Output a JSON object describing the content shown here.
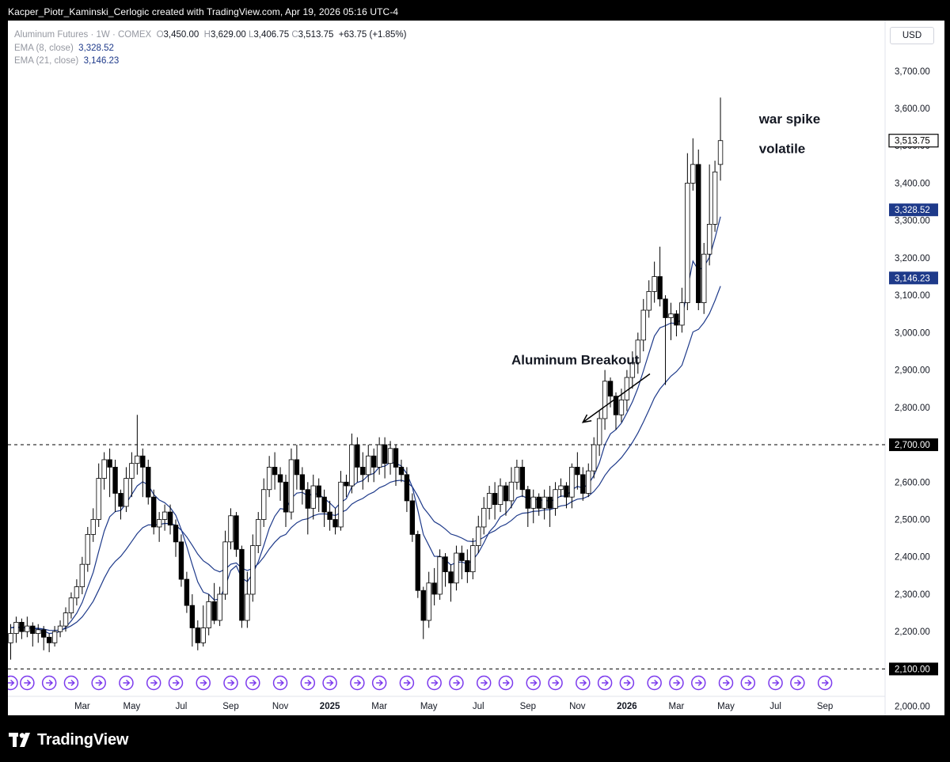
{
  "header": {
    "credit": "Kacper_Piotr_Kaminski_Cerlogic created with TradingView.com, Apr 19, 2026 05:16 UTC-4"
  },
  "legend": {
    "symbol": "Aluminum Futures · 1W · COMEX",
    "open_label": "O",
    "open": "3,450.00",
    "high_label": "H",
    "high": "3,629.00",
    "low_label": "L",
    "low": "3,406.75",
    "close_label": "C",
    "close": "3,513.75",
    "change": "+63.75 (+1.85%)",
    "ema8_label": "EMA (8, close)",
    "ema8_value": "3,328.52",
    "ema21_label": "EMA (21, close)",
    "ema21_value": "3,146.23"
  },
  "currency": "USD",
  "annotations": {
    "breakout": "Aluminum Breakout",
    "war_spike": "war spike",
    "volatile": "volatile"
  },
  "footer": {
    "brand": "TradingView"
  },
  "colors": {
    "up_body": "#ffffff",
    "down_body": "#000000",
    "candle_outline": "#000000",
    "ema8": "#1e3a8a",
    "ema21": "#1e3a8a",
    "event_icon": "#7c3aed",
    "price_tag_ema": "#1e3a8a",
    "price_tag_level": "#000000"
  },
  "chart_data": {
    "type": "candlestick",
    "title": "Aluminum Futures · 1W · COMEX",
    "currency": "USD",
    "y_ticks": [
      2000,
      2100,
      2200,
      2300,
      2400,
      2500,
      2600,
      2700,
      2800,
      2900,
      3000,
      3100,
      3200,
      3300,
      3400,
      3500,
      3600,
      3700
    ],
    "y_tick_labels": [
      "2,000.00",
      "2,100.00",
      "2,200.00",
      "2,300.00",
      "2,400.00",
      "2,500.00",
      "2,600.00",
      "2,700.00",
      "2,800.00",
      "2,900.00",
      "3,000.00",
      "3,100.00",
      "3,200.00",
      "3,300.00",
      "3,400.00",
      "3,500.00",
      "3,600.00",
      "3,700.00"
    ],
    "ylim": [
      1976,
      3835
    ],
    "x_ticks": [
      {
        "label": "Mar",
        "week": 13,
        "bold": false
      },
      {
        "label": "May",
        "week": 22,
        "bold": false
      },
      {
        "label": "Jul",
        "week": 31,
        "bold": false
      },
      {
        "label": "Sep",
        "week": 40,
        "bold": false
      },
      {
        "label": "Nov",
        "week": 49,
        "bold": false
      },
      {
        "label": "2025",
        "week": 58,
        "bold": true
      },
      {
        "label": "Mar",
        "week": 67,
        "bold": false
      },
      {
        "label": "May",
        "week": 76,
        "bold": false
      },
      {
        "label": "Jul",
        "week": 85,
        "bold": false
      },
      {
        "label": "Sep",
        "week": 94,
        "bold": false
      },
      {
        "label": "Nov",
        "week": 103,
        "bold": false
      },
      {
        "label": "2026",
        "week": 112,
        "bold": true
      },
      {
        "label": "Mar",
        "week": 121,
        "bold": false
      },
      {
        "label": "May",
        "week": 130,
        "bold": false
      },
      {
        "label": "Jul",
        "week": 139,
        "bold": false
      },
      {
        "label": "Sep",
        "week": 148,
        "bold": false
      }
    ],
    "x_range": [
      0,
      151
    ],
    "candles": [
      [
        2170,
        2195,
        2125,
        2220
      ],
      [
        2195,
        2225,
        2170,
        2240
      ],
      [
        2225,
        2200,
        2180,
        2235
      ],
      [
        2200,
        2215,
        2185,
        2240
      ],
      [
        2215,
        2195,
        2160,
        2225
      ],
      [
        2195,
        2205,
        2170,
        2220
      ],
      [
        2205,
        2185,
        2150,
        2215
      ],
      [
        2185,
        2170,
        2145,
        2195
      ],
      [
        2170,
        2200,
        2160,
        2215
      ],
      [
        2200,
        2215,
        2185,
        2230
      ],
      [
        2215,
        2250,
        2200,
        2265
      ],
      [
        2250,
        2290,
        2235,
        2305
      ],
      [
        2290,
        2320,
        2270,
        2340
      ],
      [
        2320,
        2380,
        2300,
        2400
      ],
      [
        2380,
        2460,
        2360,
        2480
      ],
      [
        2460,
        2500,
        2440,
        2530
      ],
      [
        2500,
        2610,
        2480,
        2650
      ],
      [
        2610,
        2660,
        2580,
        2680
      ],
      [
        2660,
        2640,
        2560,
        2690
      ],
      [
        2640,
        2570,
        2520,
        2660
      ],
      [
        2570,
        2535,
        2500,
        2580
      ],
      [
        2535,
        2610,
        2520,
        2640
      ],
      [
        2610,
        2650,
        2560,
        2680
      ],
      [
        2650,
        2670,
        2620,
        2780
      ],
      [
        2670,
        2640,
        2560,
        2690
      ],
      [
        2640,
        2560,
        2540,
        2660
      ],
      [
        2560,
        2480,
        2460,
        2580
      ],
      [
        2480,
        2500,
        2440,
        2520
      ],
      [
        2500,
        2520,
        2470,
        2540
      ],
      [
        2520,
        2485,
        2460,
        2540
      ],
      [
        2485,
        2440,
        2400,
        2500
      ],
      [
        2440,
        2340,
        2320,
        2460
      ],
      [
        2340,
        2270,
        2250,
        2360
      ],
      [
        2270,
        2210,
        2160,
        2300
      ],
      [
        2210,
        2170,
        2150,
        2230
      ],
      [
        2170,
        2210,
        2160,
        2270
      ],
      [
        2210,
        2280,
        2190,
        2300
      ],
      [
        2280,
        2230,
        2220,
        2330
      ],
      [
        2230,
        2300,
        2215,
        2320
      ],
      [
        2300,
        2440,
        2285,
        2470
      ],
      [
        2440,
        2510,
        2420,
        2530
      ],
      [
        2510,
        2420,
        2400,
        2520
      ],
      [
        2420,
        2230,
        2210,
        2430
      ],
      [
        2230,
        2300,
        2210,
        2360
      ],
      [
        2300,
        2430,
        2280,
        2460
      ],
      [
        2430,
        2500,
        2410,
        2520
      ],
      [
        2500,
        2580,
        2480,
        2610
      ],
      [
        2580,
        2640,
        2560,
        2670
      ],
      [
        2640,
        2620,
        2580,
        2680
      ],
      [
        2620,
        2600,
        2550,
        2640
      ],
      [
        2600,
        2520,
        2480,
        2620
      ],
      [
        2520,
        2660,
        2500,
        2690
      ],
      [
        2660,
        2620,
        2580,
        2700
      ],
      [
        2620,
        2580,
        2540,
        2640
      ],
      [
        2580,
        2530,
        2460,
        2600
      ],
      [
        2530,
        2590,
        2500,
        2620
      ],
      [
        2590,
        2560,
        2520,
        2610
      ],
      [
        2560,
        2520,
        2480,
        2580
      ],
      [
        2520,
        2500,
        2470,
        2550
      ],
      [
        2500,
        2480,
        2460,
        2530
      ],
      [
        2480,
        2600,
        2470,
        2630
      ],
      [
        2600,
        2590,
        2560,
        2620
      ],
      [
        2590,
        2700,
        2570,
        2730
      ],
      [
        2700,
        2640,
        2600,
        2720
      ],
      [
        2640,
        2620,
        2580,
        2680
      ],
      [
        2620,
        2670,
        2600,
        2700
      ],
      [
        2670,
        2640,
        2600,
        2690
      ],
      [
        2640,
        2700,
        2620,
        2720
      ],
      [
        2700,
        2650,
        2610,
        2720
      ],
      [
        2650,
        2690,
        2620,
        2710
      ],
      [
        2690,
        2640,
        2590,
        2700
      ],
      [
        2640,
        2620,
        2600,
        2660
      ],
      [
        2620,
        2550,
        2520,
        2640
      ],
      [
        2550,
        2460,
        2440,
        2570
      ],
      [
        2460,
        2310,
        2290,
        2470
      ],
      [
        2310,
        2230,
        2180,
        2320
      ],
      [
        2230,
        2330,
        2210,
        2360
      ],
      [
        2330,
        2300,
        2270,
        2370
      ],
      [
        2300,
        2400,
        2285,
        2420
      ],
      [
        2400,
        2360,
        2320,
        2410
      ],
      [
        2360,
        2330,
        2280,
        2380
      ],
      [
        2330,
        2410,
        2310,
        2430
      ],
      [
        2410,
        2390,
        2340,
        2430
      ],
      [
        2390,
        2360,
        2330,
        2420
      ],
      [
        2360,
        2430,
        2340,
        2450
      ],
      [
        2430,
        2480,
        2410,
        2510
      ],
      [
        2480,
        2530,
        2460,
        2560
      ],
      [
        2530,
        2570,
        2500,
        2590
      ],
      [
        2570,
        2540,
        2500,
        2600
      ],
      [
        2540,
        2590,
        2520,
        2610
      ],
      [
        2590,
        2550,
        2510,
        2600
      ],
      [
        2550,
        2600,
        2530,
        2640
      ],
      [
        2600,
        2640,
        2580,
        2660
      ],
      [
        2640,
        2580,
        2560,
        2660
      ],
      [
        2580,
        2530,
        2480,
        2590
      ],
      [
        2530,
        2560,
        2490,
        2580
      ],
      [
        2560,
        2530,
        2510,
        2570
      ],
      [
        2530,
        2560,
        2500,
        2580
      ],
      [
        2560,
        2530,
        2480,
        2590
      ],
      [
        2530,
        2580,
        2510,
        2600
      ],
      [
        2580,
        2590,
        2560,
        2610
      ],
      [
        2590,
        2560,
        2530,
        2600
      ],
      [
        2560,
        2640,
        2530,
        2650
      ],
      [
        2640,
        2620,
        2580,
        2680
      ],
      [
        2620,
        2570,
        2550,
        2640
      ],
      [
        2570,
        2630,
        2560,
        2650
      ],
      [
        2630,
        2700,
        2610,
        2720
      ],
      [
        2700,
        2770,
        2670,
        2790
      ],
      [
        2770,
        2870,
        2740,
        2900
      ],
      [
        2870,
        2830,
        2800,
        2880
      ],
      [
        2830,
        2780,
        2740,
        2840
      ],
      [
        2780,
        2820,
        2760,
        2850
      ],
      [
        2820,
        2880,
        2790,
        2900
      ],
      [
        2880,
        2920,
        2850,
        2950
      ],
      [
        2920,
        2980,
        2890,
        3000
      ],
      [
        2980,
        3060,
        2950,
        3090
      ],
      [
        3060,
        3110,
        3040,
        3140
      ],
      [
        3110,
        3150,
        3080,
        3190
      ],
      [
        3150,
        3090,
        3070,
        3230
      ],
      [
        3090,
        3040,
        2860,
        3100
      ],
      [
        3040,
        3050,
        2980,
        3080
      ],
      [
        3050,
        3020,
        2990,
        3060
      ],
      [
        3020,
        3080,
        3000,
        3120
      ],
      [
        3080,
        3400,
        3060,
        3480
      ],
      [
        3400,
        3450,
        3380,
        3520
      ],
      [
        3450,
        3080,
        3060,
        3490
      ],
      [
        3080,
        3210,
        3050,
        3240
      ],
      [
        3210,
        3290,
        3180,
        3450
      ],
      [
        3290,
        3430,
        3270,
        3460
      ],
      [
        3450,
        3513.75,
        3406.75,
        3629
      ]
    ],
    "ema8_last": 3328.52,
    "ema21_last": 3146.23,
    "close_last": 3513.75,
    "horizontal_levels": [
      {
        "value": 2700,
        "label": "2,700.00",
        "style": "dashed"
      },
      {
        "value": 2100,
        "label": "2,100.00",
        "style": "dashed"
      }
    ],
    "price_tags": [
      {
        "value": 3513.75,
        "label": "3,513.75",
        "type": "last"
      },
      {
        "value": 3328.52,
        "label": "3,328.52",
        "type": "ema8"
      },
      {
        "value": 3146.23,
        "label": "3,146.23",
        "type": "ema21"
      }
    ],
    "annotations": [
      {
        "text": "Aluminum Breakout",
        "week": 91,
        "value": 2915,
        "arrow_to_week": 104,
        "arrow_to_value": 2760
      },
      {
        "text": "war spike",
        "week": 136,
        "value": 3560
      },
      {
        "text": "volatile",
        "week": 136,
        "value": 3480
      }
    ],
    "event_weeks": [
      0,
      3,
      7,
      11,
      16,
      21,
      26,
      30,
      35,
      40,
      44,
      49,
      54,
      58,
      63,
      67,
      72,
      77,
      81,
      86,
      90,
      95,
      99,
      104,
      108,
      112,
      117,
      121,
      125,
      130,
      134,
      139,
      143,
      148
    ]
  }
}
